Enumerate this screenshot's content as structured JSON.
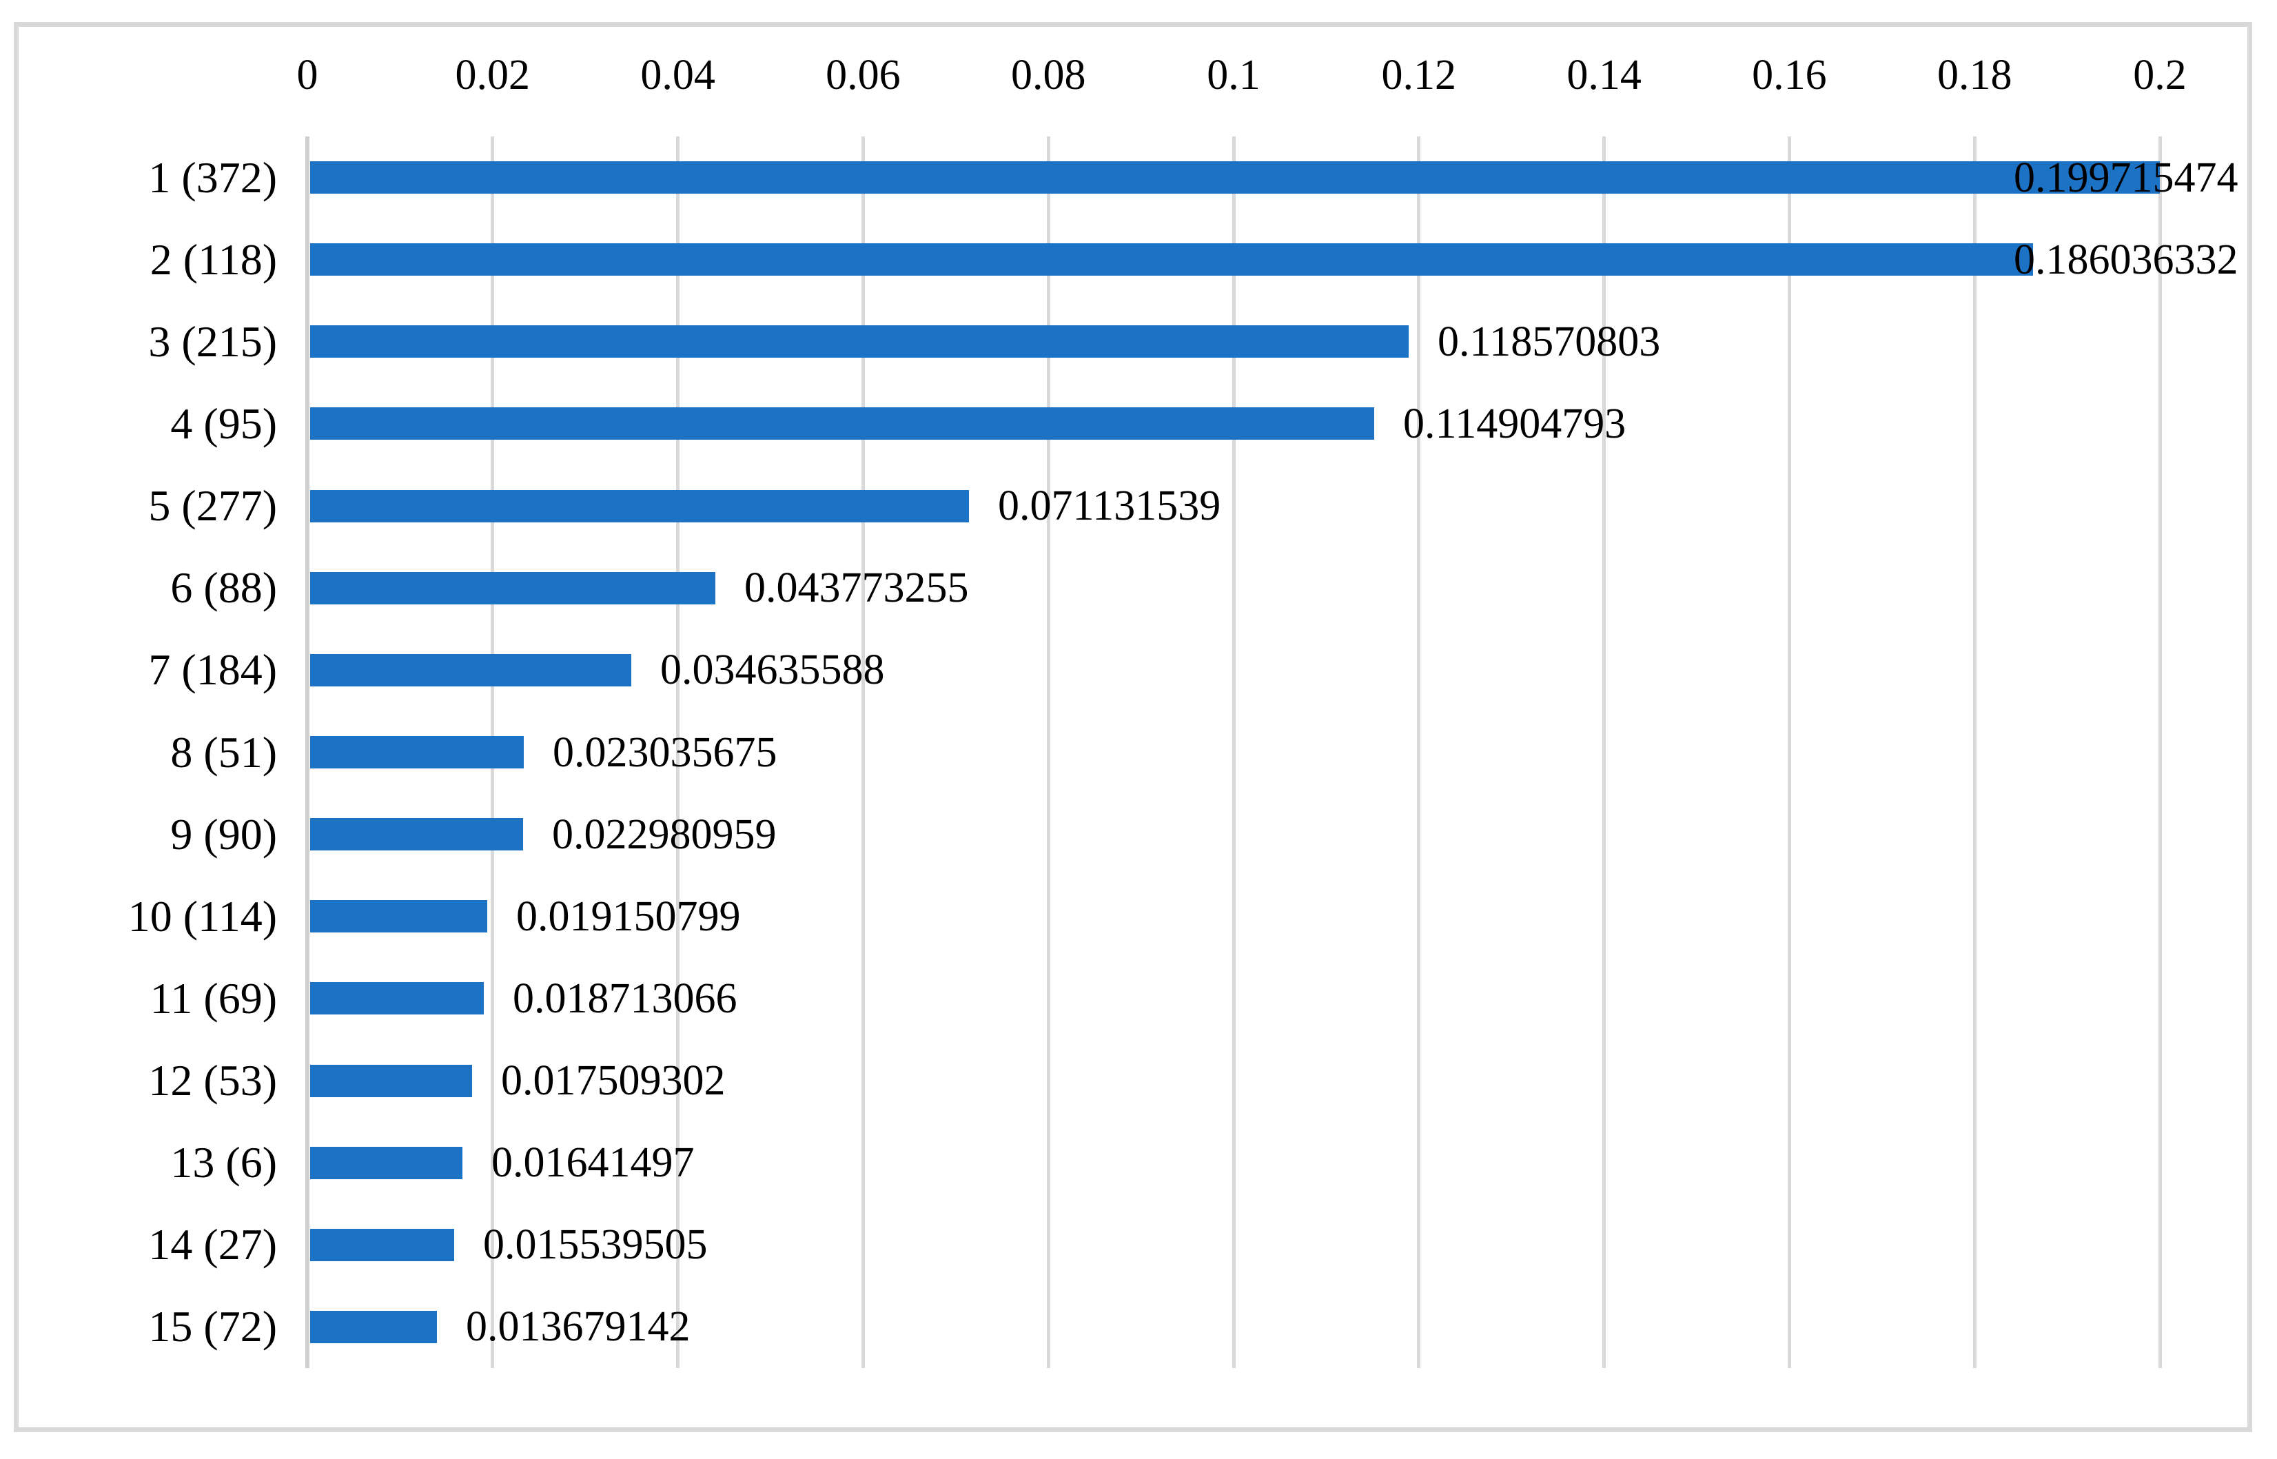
{
  "chart_data": {
    "type": "bar",
    "orientation": "horizontal",
    "title": "",
    "legend": "none",
    "grid": "vertical-gridlines",
    "value_axis": {
      "position": "top",
      "min": 0,
      "max": 0.21,
      "tick_interval": 0.02,
      "tick_labels": [
        "0",
        "0.02",
        "0.04",
        "0.06",
        "0.08",
        "0.1",
        "0.12",
        "0.14",
        "0.16",
        "0.18",
        "0.2"
      ],
      "tick_values": [
        0,
        0.02,
        0.04,
        0.06,
        0.08,
        0.1,
        0.12,
        0.14,
        0.16,
        0.18,
        0.2
      ]
    },
    "categories": [
      "1 (372)",
      "2 (118)",
      "3 (215)",
      "4 (95)",
      "5 (277)",
      "6 (88)",
      "7 (184)",
      "8 (51)",
      "9 (90)",
      "10 (114)",
      "11 (69)",
      "12 (53)",
      "13 (6)",
      "14 (27)",
      "15 (72)"
    ],
    "values": [
      0.199715474,
      0.186036332,
      0.118570803,
      0.114904793,
      0.071131539,
      0.043773255,
      0.034635588,
      0.023035675,
      0.022980959,
      0.019150799,
      0.018713066,
      0.017509302,
      0.01641497,
      0.015539505,
      0.013679142
    ],
    "bars": [
      {
        "rank": "1",
        "count": "372",
        "category": "1 (372)",
        "value": 0.199715474,
        "value_label": "0.199715474"
      },
      {
        "rank": "2",
        "count": "118",
        "category": "2 (118)",
        "value": 0.186036332,
        "value_label": "0.186036332"
      },
      {
        "rank": "3",
        "count": "215",
        "category": "3 (215)",
        "value": 0.118570803,
        "value_label": "0.118570803"
      },
      {
        "rank": "4",
        "count": "95",
        "category": "4 (95)",
        "value": 0.114904793,
        "value_label": "0.114904793"
      },
      {
        "rank": "5",
        "count": "277",
        "category": "5 (277)",
        "value": 0.071131539,
        "value_label": "0.071131539"
      },
      {
        "rank": "6",
        "count": "88",
        "category": "6 (88)",
        "value": 0.043773255,
        "value_label": "0.043773255"
      },
      {
        "rank": "7",
        "count": "184",
        "category": "7 (184)",
        "value": 0.034635588,
        "value_label": "0.034635588"
      },
      {
        "rank": "8",
        "count": "51",
        "category": "8 (51)",
        "value": 0.023035675,
        "value_label": "0.023035675"
      },
      {
        "rank": "9",
        "count": "90",
        "category": "9 (90)",
        "value": 0.022980959,
        "value_label": "0.022980959"
      },
      {
        "rank": "10",
        "count": "114",
        "category": "10 (114)",
        "value": 0.019150799,
        "value_label": "0.019150799"
      },
      {
        "rank": "11",
        "count": "69",
        "category": "11 (69)",
        "value": 0.018713066,
        "value_label": "0.018713066"
      },
      {
        "rank": "12",
        "count": "53",
        "category": "12 (53)",
        "value": 0.017509302,
        "value_label": "0.017509302"
      },
      {
        "rank": "13",
        "count": "6",
        "category": "13 (6)",
        "value": 0.01641497,
        "value_label": "0.01641497"
      },
      {
        "rank": "14",
        "count": "27",
        "category": "14 (27)",
        "value": 0.015539505,
        "value_label": "0.015539505"
      },
      {
        "rank": "15",
        "count": "72",
        "category": "15 (72)",
        "value": 0.013679142,
        "value_label": "0.013679142"
      }
    ],
    "colors": {
      "bar_fill": "#1C73C6",
      "gridline": "#D9D9D9",
      "frame_border": "#D9D9D9",
      "text": "#000000",
      "background": "#FFFFFF"
    }
  }
}
